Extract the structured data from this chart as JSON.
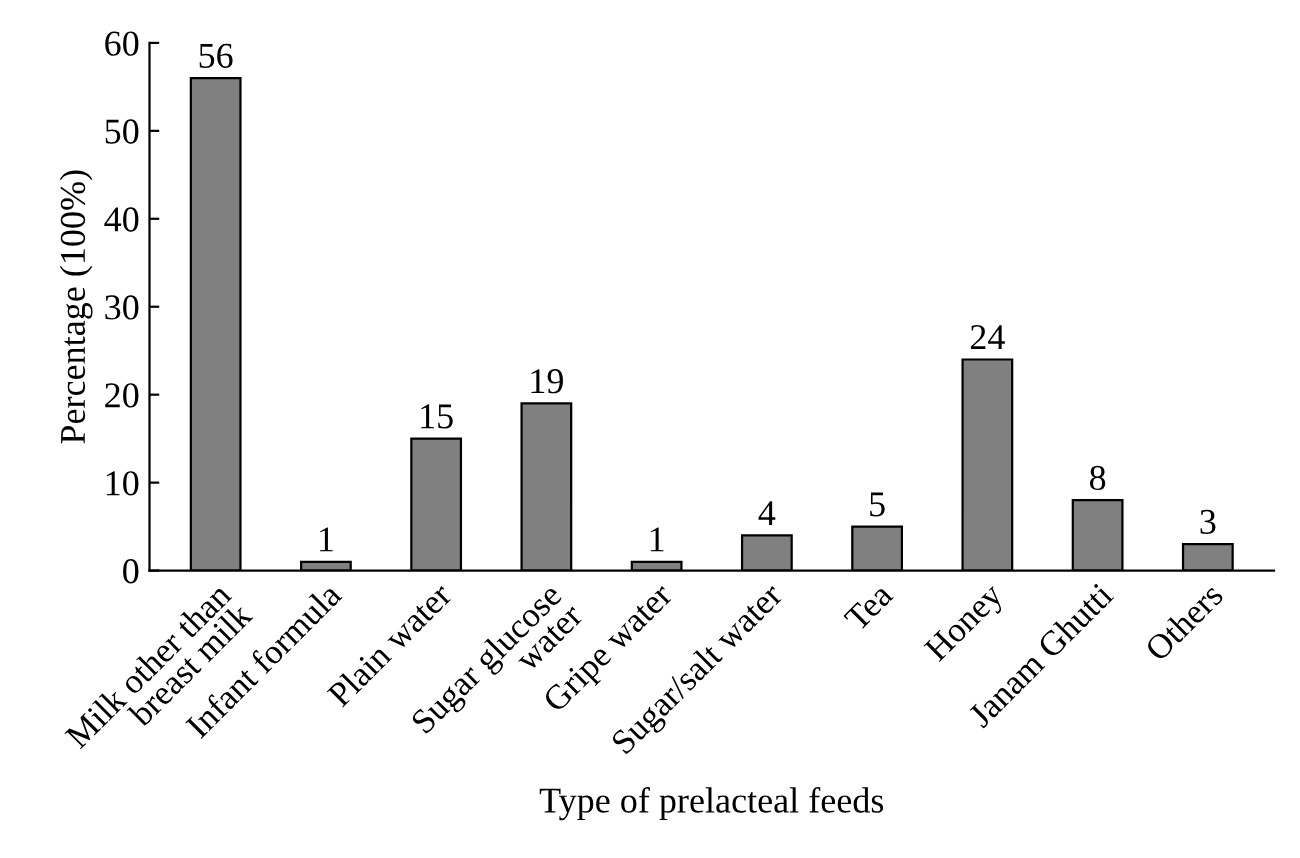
{
  "chart_data": {
    "type": "bar",
    "categories": [
      "Milk other than\nbreast milk",
      "Infant formula",
      "Plain water",
      "Sugar glucose\nwater",
      "Gripe water",
      "Sugar/salt water",
      "Tea",
      "Honey",
      "Janam Ghutti",
      "Others"
    ],
    "values": [
      56,
      1,
      15,
      19,
      1,
      4,
      5,
      24,
      8,
      3
    ],
    "color": "#808080",
    "xlabel": "Type of prelacteal feeds",
    "ylabel": "Percentage (100%)",
    "ylim": [
      0,
      60
    ],
    "yticks": [
      0,
      10,
      20,
      30,
      40,
      50,
      60
    ],
    "data_labels": true,
    "grid": false,
    "legend": false
  }
}
